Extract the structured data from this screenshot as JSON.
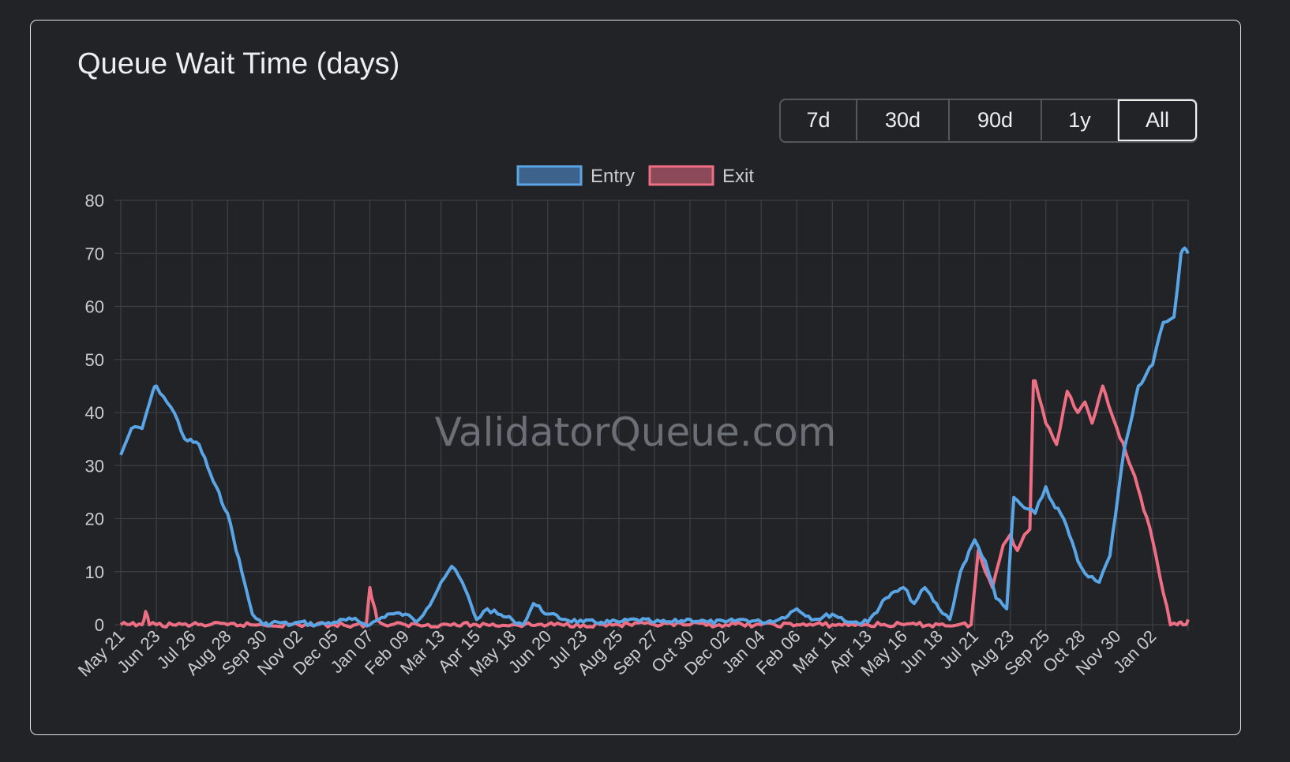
{
  "card": {
    "title": "Queue Wait Time (days)"
  },
  "range_buttons": [
    {
      "label": "7d",
      "active": false
    },
    {
      "label": "30d",
      "active": false
    },
    {
      "label": "90d",
      "active": false
    },
    {
      "label": "1y",
      "active": false
    },
    {
      "label": "All",
      "active": true
    }
  ],
  "watermark": "ValidatorQueue.com",
  "colors": {
    "entry_line": "#5aa5e6",
    "entry_fill": "#3d628c",
    "exit_line": "#ee6e84",
    "exit_fill": "#8c4958",
    "grid": "#3d3f44",
    "text": "#c9cbce"
  },
  "chart_data": {
    "type": "line",
    "title": "Queue Wait Time (days)",
    "xlabel": "",
    "ylabel": "",
    "ylim": [
      0,
      80
    ],
    "yticks": [
      0,
      10,
      20,
      30,
      40,
      50,
      60,
      70,
      80
    ],
    "grid": true,
    "legend_position": "top",
    "categories": [
      "May 21",
      "Jun 23",
      "Jul 26",
      "Aug 28",
      "Sep 30",
      "Nov 02",
      "Dec 05",
      "Jan 07",
      "Feb 09",
      "Mar 13",
      "Apr 15",
      "May 18",
      "Jun 20",
      "Jul 23",
      "Aug 25",
      "Sep 27",
      "Oct 30",
      "Dec 02",
      "Jan 04",
      "Feb 06",
      "Mar 11",
      "Apr 13",
      "May 16",
      "Jun 18",
      "Jul 21",
      "Aug 23",
      "Sep 25",
      "Oct 28",
      "Nov 30",
      "Jan 02"
    ],
    "series": [
      {
        "name": "Entry",
        "x": [
          0,
          0.3,
          0.6,
          0.9,
          1.0,
          1.2,
          1.5,
          1.8,
          2.2,
          2.6,
          3.0,
          3.4,
          3.7,
          4.0,
          4.4,
          4.8,
          5.0,
          5.5,
          6.0,
          6.5,
          7.0,
          7.5,
          8.0,
          8.3,
          8.6,
          9.0,
          9.3,
          9.6,
          10.0,
          10.3,
          10.6,
          11.0,
          11.3,
          11.6,
          12.0,
          12.5,
          13.0,
          13.5,
          14.0,
          14.5,
          15.0,
          15.5,
          16.0,
          16.5,
          17.0,
          17.5,
          18.0,
          18.5,
          19.0,
          19.5,
          20.0,
          20.5,
          21.0,
          21.5,
          22.0,
          22.3,
          22.6,
          23.0,
          23.3,
          23.6,
          24.0,
          24.3,
          24.6,
          24.9,
          25.1,
          25.4,
          25.7,
          26.0,
          26.1,
          26.5,
          26.9,
          27.2,
          27.5,
          27.8,
          28.2,
          28.6,
          29.0,
          29.3,
          29.6,
          29.8,
          29.9,
          30.0
        ],
        "values": [
          32,
          37,
          37,
          44,
          45,
          43,
          40,
          35,
          34,
          27,
          21,
          10,
          2,
          0,
          0.5,
          0,
          0.5,
          0,
          0.5,
          1,
          0,
          2,
          2,
          0.5,
          3,
          8,
          11,
          8,
          1,
          3,
          2,
          1,
          0,
          4,
          2,
          1,
          0.5,
          0.5,
          0.5,
          1,
          0.5,
          0.5,
          1,
          0.5,
          0.5,
          1,
          0.5,
          1,
          3,
          1,
          2,
          0.5,
          0.5,
          5,
          7,
          4,
          7,
          3,
          1,
          10,
          16,
          12,
          5,
          3,
          24,
          22,
          21,
          26,
          24,
          20,
          12,
          9,
          8,
          13,
          33,
          45,
          49,
          57,
          58,
          70,
          71,
          70
        ]
      },
      {
        "name": "Exit",
        "x": [
          0,
          0.6,
          0.7,
          0.8,
          1.0,
          2.0,
          3.0,
          4.0,
          5.0,
          6.0,
          6.9,
          7.0,
          7.1,
          7.2,
          7.4,
          7.6,
          8.0,
          9.0,
          10.0,
          11.0,
          12.0,
          13.0,
          14.0,
          15.0,
          16.0,
          17.0,
          18.0,
          19.0,
          20.0,
          21.0,
          22.0,
          23.0,
          23.9,
          24.0,
          24.1,
          24.3,
          24.5,
          24.8,
          25.0,
          25.2,
          25.4,
          25.55,
          25.65,
          25.7,
          26.0,
          26.3,
          26.6,
          26.9,
          27.1,
          27.3,
          27.6,
          28.0,
          28.5,
          29.0,
          29.3,
          29.5,
          29.7,
          29.8,
          29.9,
          30.0
        ],
        "values": [
          0,
          0,
          2.5,
          0,
          0,
          0,
          0,
          0,
          0,
          0,
          0,
          7,
          4,
          1,
          0,
          0,
          0,
          0,
          0,
          0,
          0,
          0,
          0,
          0,
          0,
          0,
          0,
          0,
          0,
          0,
          0,
          0,
          0,
          7,
          14,
          10,
          7,
          15,
          17,
          14,
          17,
          18,
          46,
          46,
          38,
          34,
          44,
          40,
          42,
          38,
          45,
          37,
          28,
          16,
          6,
          0,
          0,
          0.5,
          0,
          1
        ]
      }
    ]
  }
}
